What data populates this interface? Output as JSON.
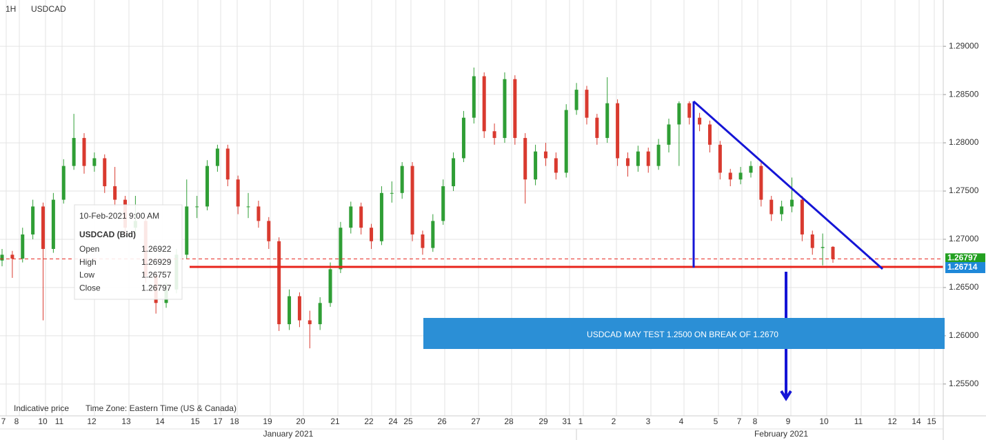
{
  "header": {
    "interval": "1H",
    "symbol": "USDCAD"
  },
  "chart_data": {
    "type": "candlestick",
    "open": [
      1.2678,
      1.2684,
      1.268,
      1.2705,
      1.2734,
      1.269,
      1.2741,
      1.2776,
      1.2805,
      1.2776,
      1.2784,
      1.2755,
      1.2741,
      1.2712,
      1.2719,
      1.2662,
      1.2634,
      1.2648,
      1.2684,
      1.2734,
      1.2734,
      1.2776,
      1.2794,
      1.2762,
      1.2734,
      1.2734,
      1.2719,
      1.2698,
      1.2612,
      1.2641,
      1.2616,
      1.2612,
      1.2634,
      1.2669,
      1.2712,
      1.2734,
      1.2712,
      1.2698,
      1.2748,
      1.2748,
      1.2776,
      1.2705,
      1.2691,
      1.2719,
      1.2755,
      1.2784,
      1.2826,
      1.2869,
      1.2812,
      1.2805,
      1.2866,
      1.2805,
      1.2762,
      1.2791,
      1.2784,
      1.2769,
      1.2834,
      1.2855,
      1.2826,
      1.2805,
      1.2841,
      1.2784,
      1.2776,
      1.2791,
      1.2776,
      1.2798,
      1.2819,
      1.2841,
      1.2826,
      1.2819,
      1.2798,
      1.2769,
      1.2762,
      1.2769,
      1.2776,
      1.2741,
      1.2726,
      1.2734,
      1.2741,
      1.2705,
      1.2691,
      1.26922
    ],
    "high": [
      1.269,
      1.2688,
      1.2712,
      1.2741,
      1.2738,
      1.2748,
      1.2783,
      1.283,
      1.281,
      1.279,
      1.2788,
      1.2775,
      1.2745,
      1.2745,
      1.2723,
      1.2666,
      1.2655,
      1.269,
      1.2762,
      1.2745,
      1.2782,
      1.2798,
      1.2798,
      1.2766,
      1.2748,
      1.274,
      1.2723,
      1.2702,
      1.2648,
      1.2645,
      1.2626,
      1.264,
      1.2676,
      1.2718,
      1.2739,
      1.2738,
      1.2716,
      1.2755,
      1.276,
      1.278,
      1.278,
      1.2709,
      1.2726,
      1.2762,
      1.279,
      1.2833,
      1.2878,
      1.2873,
      1.282,
      1.2873,
      1.287,
      1.281,
      1.2798,
      1.28,
      1.279,
      1.284,
      1.2862,
      1.2859,
      1.283,
      1.2868,
      1.2845,
      1.279,
      1.2797,
      1.2795,
      1.2804,
      1.2825,
      1.2843,
      1.2843,
      1.2831,
      1.2823,
      1.2802,
      1.2773,
      1.2775,
      1.2781,
      1.278,
      1.2745,
      1.274,
      1.2764,
      1.2745,
      1.2709,
      1.2706,
      1.26929
    ],
    "low": [
      1.2672,
      1.266,
      1.2676,
      1.27,
      1.2616,
      1.2686,
      1.2737,
      1.2772,
      1.2768,
      1.277,
      1.2748,
      1.2734,
      1.2705,
      1.2706,
      1.2655,
      1.2623,
      1.2629,
      1.2644,
      1.268,
      1.2722,
      1.273,
      1.277,
      1.2755,
      1.2726,
      1.2722,
      1.2712,
      1.269,
      1.2605,
      1.2606,
      1.2609,
      1.2587,
      1.2606,
      1.263,
      1.2665,
      1.2706,
      1.2705,
      1.269,
      1.2694,
      1.2738,
      1.2742,
      1.2698,
      1.2684,
      1.2687,
      1.2715,
      1.275,
      1.278,
      1.282,
      1.2805,
      1.2798,
      1.28,
      1.2798,
      1.2737,
      1.2756,
      1.2776,
      1.2762,
      1.2764,
      1.2829,
      1.2819,
      1.2798,
      1.28,
      1.2776,
      1.2765,
      1.277,
      1.2769,
      1.2772,
      1.279,
      1.2776,
      1.2819,
      1.2812,
      1.279,
      1.2762,
      1.2755,
      1.2757,
      1.2764,
      1.2734,
      1.2719,
      1.2719,
      1.2728,
      1.2698,
      1.2684,
      1.2673,
      1.26757
    ],
    "close": [
      1.2684,
      1.268,
      1.2705,
      1.2734,
      1.269,
      1.2741,
      1.2776,
      1.2805,
      1.2776,
      1.2784,
      1.2755,
      1.2741,
      1.2712,
      1.2719,
      1.2662,
      1.2634,
      1.2648,
      1.2684,
      1.2734,
      1.2734,
      1.2776,
      1.2794,
      1.2762,
      1.2734,
      1.2734,
      1.2719,
      1.2698,
      1.2612,
      1.2641,
      1.2616,
      1.2612,
      1.2634,
      1.2669,
      1.2712,
      1.2734,
      1.2712,
      1.2698,
      1.2748,
      1.2748,
      1.2776,
      1.2705,
      1.2691,
      1.2719,
      1.2755,
      1.2784,
      1.2826,
      1.2869,
      1.2812,
      1.2805,
      1.2866,
      1.2805,
      1.2762,
      1.2791,
      1.2784,
      1.2769,
      1.2834,
      1.2855,
      1.2826,
      1.2805,
      1.2841,
      1.2784,
      1.2776,
      1.2791,
      1.2776,
      1.2798,
      1.2819,
      1.2841,
      1.2826,
      1.2819,
      1.2798,
      1.2769,
      1.2762,
      1.2769,
      1.2776,
      1.2741,
      1.2726,
      1.2734,
      1.2741,
      1.2705,
      1.2691,
      1.2692,
      1.26797
    ],
    "up_color": "#2f9e35",
    "down_color": "#d93a2f",
    "ylim": [
      1.2517,
      1.2948
    ],
    "yticks": [
      {
        "value": 1.255,
        "label": "1.25500"
      },
      {
        "value": 1.26,
        "label": "1.26000"
      },
      {
        "value": 1.265,
        "label": "1.26500"
      },
      {
        "value": 1.27,
        "label": "1.27000"
      },
      {
        "value": 1.275,
        "label": "1.27500"
      },
      {
        "value": 1.28,
        "label": "1.28000"
      },
      {
        "value": 1.285,
        "label": "1.28500"
      },
      {
        "value": 1.29,
        "label": "1.29000"
      }
    ],
    "grid": true,
    "day_labels": [
      "7",
      "8",
      "10",
      "11",
      "12",
      "13",
      "14",
      "15",
      "17",
      "18",
      "19",
      "20",
      "21",
      "22",
      "24",
      "25",
      "26",
      "27",
      "28",
      "29",
      "31",
      "1",
      "2",
      "3",
      "4",
      "5",
      "7",
      "8",
      "9",
      "10",
      "11",
      "12",
      "14",
      "15"
    ],
    "month_labels": [
      "January 2021",
      "February 2021"
    ],
    "support_level": 1.26714,
    "support_color": "#e8231b",
    "annotation": "USDCAD MAY TEST 1.2500 ON BREAK OF 1.2670"
  },
  "tooltip": {
    "date": "10-Feb-2021 9:00 AM",
    "title": "USDCAD (Bid)",
    "labels": [
      "Open",
      "High",
      "Low",
      "Close"
    ]
  },
  "footer": {
    "note": "Indicative price",
    "timezone": "Time Zone: Eastern Time (US & Canada)"
  }
}
